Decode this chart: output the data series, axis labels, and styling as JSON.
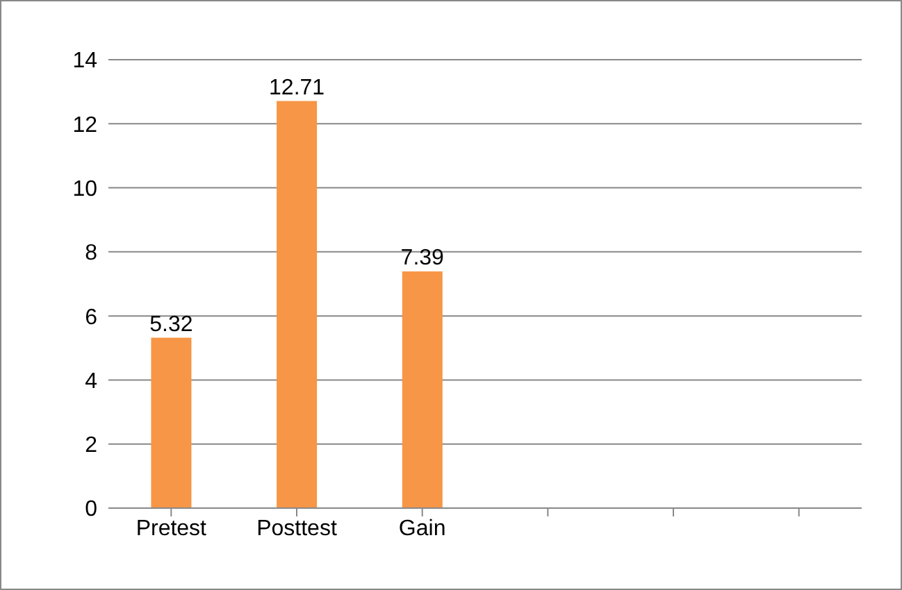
{
  "chart_data": {
    "type": "bar",
    "categories": [
      "Pretest",
      "Posttest",
      "Gain",
      null,
      null,
      null
    ],
    "values": [
      5.32,
      12.71,
      7.39,
      null,
      null,
      null
    ],
    "color": "#f79646",
    "ylim": [
      0,
      14
    ],
    "yticks": [
      0,
      2,
      4,
      6,
      8,
      10,
      12,
      14
    ],
    "grid": "y",
    "data_labels": true
  }
}
